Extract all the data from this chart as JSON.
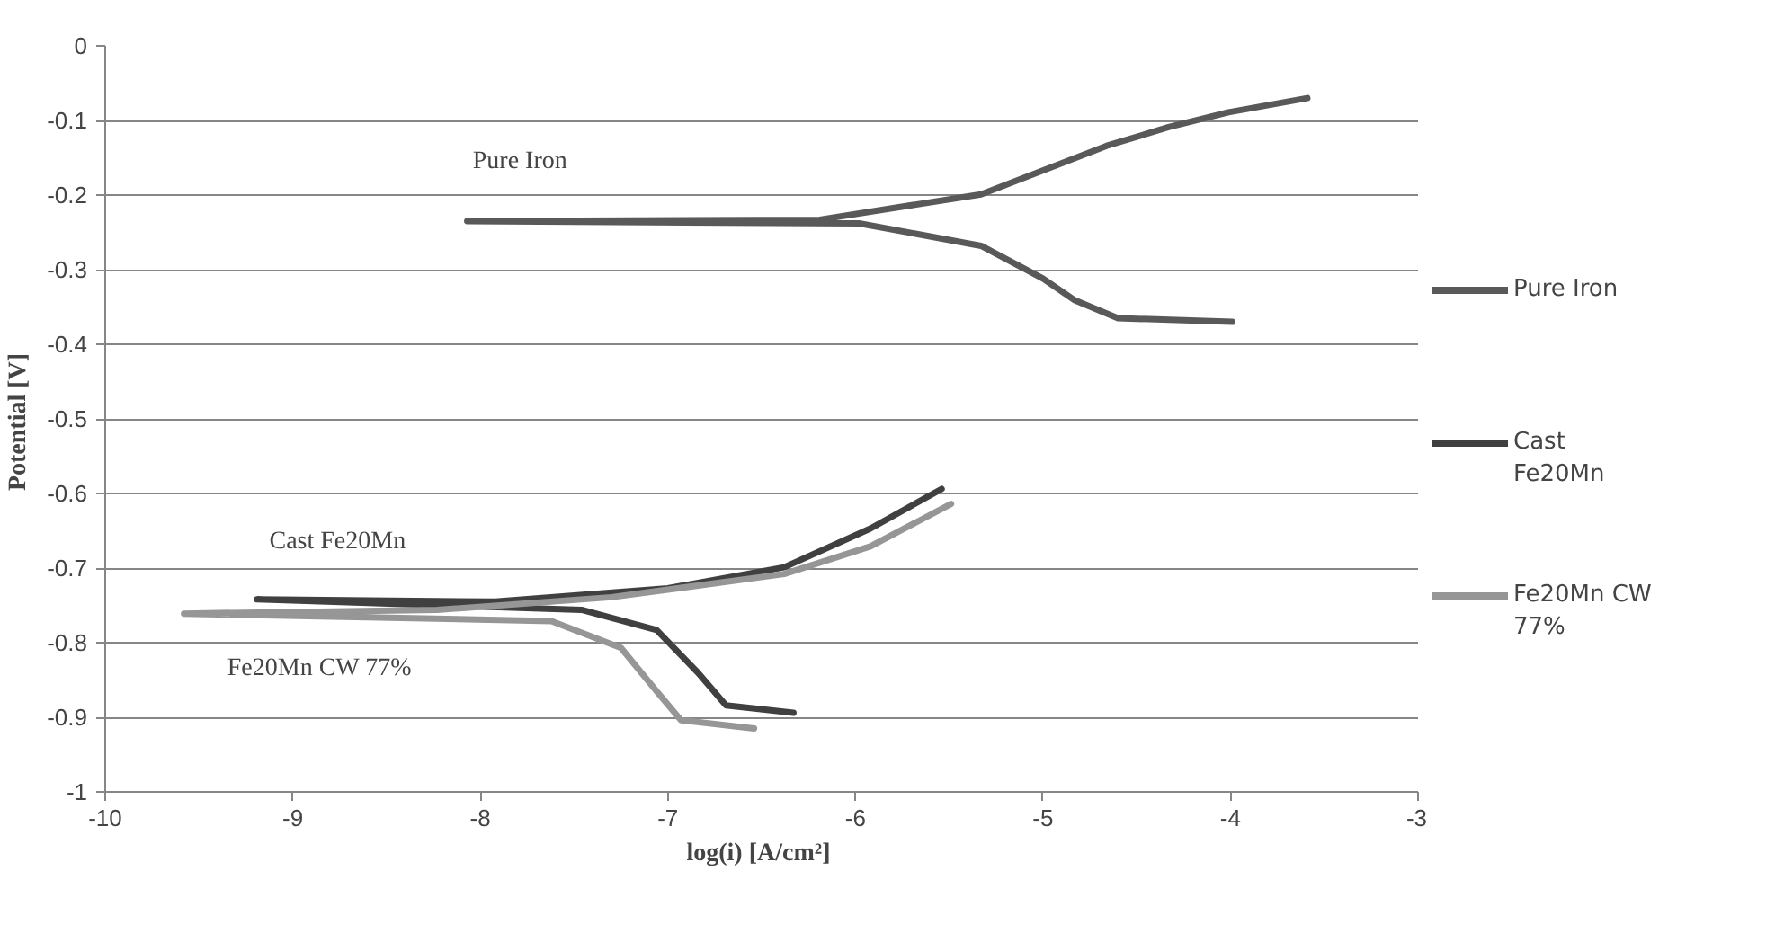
{
  "chart_data": {
    "type": "line",
    "xlabel": "log(i)  [A/cm²]",
    "ylabel": "Potential  [V]",
    "xlim": [
      -10,
      -3
    ],
    "xticks": [
      -10,
      -9,
      -8,
      -7,
      -6,
      -5,
      -4,
      -3
    ],
    "ylim": [
      -1,
      0
    ],
    "yticks": [
      0,
      -0.1,
      -0.2,
      -0.3,
      -0.4,
      -0.5,
      -0.6,
      -0.7,
      -0.8,
      -0.9,
      -1
    ],
    "grid": "y",
    "legend": "right",
    "marker": "none",
    "line_style": "solid",
    "series": [
      {
        "name": "Pure Iron",
        "color": "#595959",
        "x": [
          -3.59,
          -4.01,
          -4.33,
          -4.66,
          -5.33,
          -6.19,
          -8.07,
          -5.98,
          -5.33,
          -5.0,
          -4.83,
          -4.6,
          -3.99
        ],
        "values": [
          -0.07,
          -0.089,
          -0.109,
          -0.134,
          -0.199,
          -0.233,
          -0.235,
          -0.238,
          -0.268,
          -0.312,
          -0.341,
          -0.365,
          -0.37
        ]
      },
      {
        "name": "Cast Fe20Mn",
        "color": "#404040",
        "x": [
          -5.54,
          -5.92,
          -6.38,
          -7.0,
          -7.92,
          -9.19,
          -7.46,
          -7.06,
          -6.84,
          -6.69,
          -6.33
        ],
        "values": [
          -0.594,
          -0.647,
          -0.699,
          -0.727,
          -0.745,
          -0.742,
          -0.756,
          -0.783,
          -0.84,
          -0.884,
          -0.894
        ]
      },
      {
        "name": "Fe20Mn CW 77%",
        "color": "#969696",
        "x": [
          -5.49,
          -5.92,
          -6.38,
          -7.3,
          -8.23,
          -9.58,
          -7.62,
          -7.25,
          -7.06,
          -6.93,
          -6.54
        ],
        "values": [
          -0.614,
          -0.671,
          -0.708,
          -0.739,
          -0.756,
          -0.761,
          -0.771,
          -0.807,
          -0.865,
          -0.904,
          -0.915
        ]
      }
    ],
    "annotations": [
      "Pure Iron",
      "Cast Fe20Mn",
      "Fe20Mn  CW 77%"
    ]
  }
}
